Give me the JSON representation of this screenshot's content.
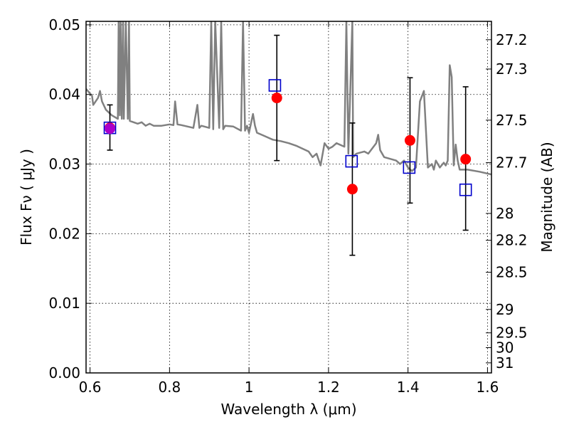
{
  "chart_data": {
    "type": "scatter",
    "title": "",
    "xlabel": "Wavelength  λ (μm)",
    "ylabel": "Flux  Fν  ( μJy )",
    "y2label": "Magnitude (AB)",
    "xlim": [
      0.59,
      1.61
    ],
    "ylim": [
      0.0,
      0.0505
    ],
    "grid": true,
    "x_ticks": [
      0.6,
      0.8,
      1.0,
      1.2,
      1.4,
      1.6
    ],
    "x_tick_labels": [
      "0.6",
      "0.8",
      "1",
      "1.2",
      "1.4",
      "1.6"
    ],
    "y_ticks": [
      0.0,
      0.01,
      0.02,
      0.03,
      0.04,
      0.05
    ],
    "y_tick_labels": [
      "0.00",
      "0.01",
      "0.02",
      "0.03",
      "0.04",
      "0.05"
    ],
    "mag_ticks": [
      27.2,
      27.3,
      27.5,
      27.7,
      28,
      28.2,
      28.5,
      29,
      29.5,
      30,
      31
    ],
    "mag_tick_labels": [
      "27.2",
      "27.3",
      "27.5",
      "27.7",
      "28",
      "28.2",
      "28.5",
      "29",
      "29.5",
      "30",
      "31"
    ],
    "series": [
      {
        "kind": "line",
        "color": "#808080",
        "x": [
          0.59,
          0.605,
          0.608,
          0.62,
          0.625,
          0.63,
          0.64,
          0.655,
          0.67,
          0.672,
          0.675,
          0.677,
          0.68,
          0.683,
          0.685,
          0.69,
          0.695,
          0.698,
          0.7,
          0.72,
          0.73,
          0.74,
          0.75,
          0.76,
          0.78,
          0.8,
          0.81,
          0.814,
          0.82,
          0.83,
          0.86,
          0.87,
          0.875,
          0.88,
          0.9,
          0.905,
          0.91,
          0.915,
          0.925,
          0.93,
          0.935,
          0.94,
          0.96,
          0.98,
          0.985,
          0.99,
          0.995,
          1.0,
          1.01,
          1.015,
          1.02,
          1.04,
          1.06,
          1.08,
          1.1,
          1.12,
          1.15,
          1.16,
          1.17,
          1.18,
          1.19,
          1.2,
          1.21,
          1.22,
          1.24,
          1.245,
          1.25,
          1.26,
          1.262,
          1.27,
          1.29,
          1.3,
          1.32,
          1.325,
          1.33,
          1.34,
          1.37,
          1.38,
          1.39,
          1.4,
          1.41,
          1.42,
          1.43,
          1.44,
          1.45,
          1.46,
          1.465,
          1.47,
          1.48,
          1.49,
          1.495,
          1.5,
          1.505,
          1.51,
          1.515,
          1.52,
          1.525,
          1.53,
          1.55,
          1.58,
          1.61
        ],
        "y": [
          0.0408,
          0.0398,
          0.0385,
          0.0395,
          0.0405,
          0.039,
          0.0378,
          0.037,
          0.0365,
          0.0505,
          0.037,
          0.0505,
          0.0365,
          0.0505,
          0.0365,
          0.0505,
          0.0365,
          0.0505,
          0.0362,
          0.0358,
          0.036,
          0.0355,
          0.0358,
          0.0355,
          0.0355,
          0.0357,
          0.0356,
          0.039,
          0.0357,
          0.0356,
          0.0352,
          0.0385,
          0.0352,
          0.0355,
          0.0352,
          0.0505,
          0.035,
          0.0505,
          0.0352,
          0.0505,
          0.035,
          0.0355,
          0.0354,
          0.0348,
          0.0505,
          0.0348,
          0.0355,
          0.0345,
          0.0372,
          0.0355,
          0.0345,
          0.034,
          0.0335,
          0.0333,
          0.033,
          0.0326,
          0.0318,
          0.031,
          0.0315,
          0.0298,
          0.033,
          0.0322,
          0.0325,
          0.033,
          0.0325,
          0.0505,
          0.0315,
          0.0505,
          0.031,
          0.0315,
          0.0318,
          0.0315,
          0.033,
          0.0342,
          0.032,
          0.031,
          0.0305,
          0.03,
          0.0305,
          0.0295,
          0.029,
          0.0295,
          0.039,
          0.0405,
          0.0295,
          0.03,
          0.0292,
          0.0305,
          0.0295,
          0.0302,
          0.0298,
          0.0305,
          0.0442,
          0.0425,
          0.0298,
          0.0328,
          0.0305,
          0.0292,
          0.0292,
          0.0289,
          0.0285
        ]
      },
      {
        "kind": "points",
        "marker": "circle",
        "color": "#ff0000",
        "x": [
          0.65,
          1.07,
          1.26,
          1.405,
          1.545
        ],
        "y": [
          0.0352,
          0.0395,
          0.0264,
          0.0334,
          0.0307
        ],
        "yerr_low": [
          0.0032,
          0.009,
          0.0095,
          0.009,
          0.0102
        ],
        "yerr_high": [
          0.0033,
          0.009,
          0.0095,
          0.009,
          0.0104
        ]
      },
      {
        "kind": "points",
        "marker": "square-open",
        "color": "#0000cc",
        "x": [
          0.65,
          1.065,
          1.258,
          1.403,
          1.545
        ],
        "y": [
          0.0352,
          0.0413,
          0.0304,
          0.0295,
          0.0263
        ]
      },
      {
        "kind": "points",
        "marker": "circle",
        "color": "#aa00cc",
        "x": [
          0.65
        ],
        "y": [
          0.0351
        ]
      }
    ]
  }
}
